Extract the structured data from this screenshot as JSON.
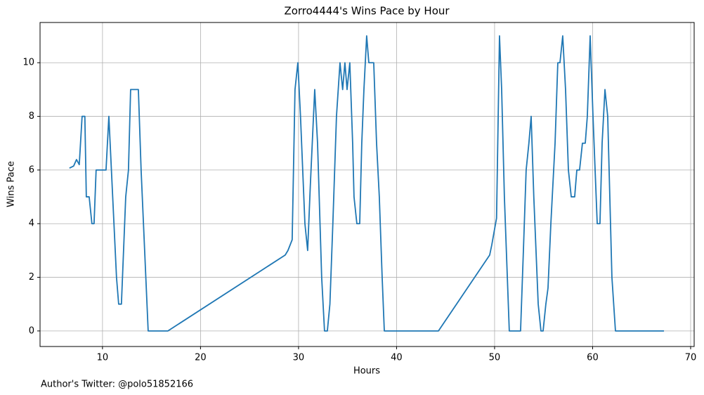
{
  "chart_data": {
    "type": "line",
    "title": "Zorro4444's Wins Pace by Hour",
    "x_label": "Hours",
    "y_label": "Wins Pace",
    "annotation": "Author's Twitter: @polo51852166",
    "x": [
      6.63,
      7.06,
      7.35,
      7.63,
      7.92,
      8.2,
      8.35,
      8.64,
      8.92,
      9.14,
      9.35,
      10.36,
      10.65,
      11.43,
      11.65,
      11.93,
      12.15,
      12.37,
      12.65,
      12.87,
      13.66,
      13.94,
      14.66,
      16.67,
      28.64,
      28.92,
      29.35,
      29.64,
      29.93,
      30.2,
      30.65,
      30.93,
      31.2,
      31.65,
      31.94,
      32.36,
      32.65,
      32.94,
      33.2,
      33.5,
      33.87,
      34.23,
      34.5,
      34.73,
      34.95,
      35.23,
      35.52,
      35.66,
      35.95,
      36.24,
      36.45,
      36.67,
      36.95,
      37.17,
      37.67,
      37.96,
      38.24,
      38.53,
      38.75,
      44.27,
      49.5,
      49.71,
      50.0,
      50.2,
      50.5,
      50.72,
      51.0,
      51.3,
      51.5,
      52.65,
      52.94,
      53.22,
      53.5,
      53.73,
      54.0,
      54.45,
      54.73,
      54.95,
      55.23,
      55.45,
      55.74,
      56.17,
      56.45,
      56.67,
      56.95,
      57.24,
      57.53,
      57.82,
      58.17,
      58.39,
      58.67,
      58.96,
      59.25,
      59.46,
      59.75,
      60.04,
      60.47,
      60.75,
      60.97,
      61.26,
      61.54,
      61.97,
      62.33,
      67.28
    ],
    "series": [
      {
        "name": "Wins Pace",
        "color": "#1f77b4",
        "values": [
          6.07,
          6.15,
          6.39,
          6.2,
          8,
          8,
          5,
          5,
          4,
          4,
          6,
          6,
          8,
          2,
          1,
          1,
          3,
          5,
          6,
          9,
          9,
          6,
          0,
          0,
          2.83,
          3,
          3.4,
          9,
          10,
          8,
          4,
          3,
          5.4,
          9,
          7,
          2,
          0,
          0,
          1,
          4,
          8,
          10,
          9,
          10,
          9,
          10,
          7,
          5,
          4,
          4,
          7,
          9,
          11,
          10,
          10,
          7,
          5,
          2,
          0,
          0,
          2.83,
          3.2,
          3.8,
          4.2,
          11,
          9,
          5,
          2,
          0,
          0,
          3,
          6,
          7,
          8,
          5,
          1,
          0,
          0,
          1,
          1.6,
          4,
          7,
          10,
          10,
          11,
          9,
          6,
          5,
          5,
          6,
          6,
          7,
          7,
          8,
          11,
          8,
          4,
          4,
          7,
          9,
          8,
          2,
          0,
          0
        ]
      }
    ],
    "xlim": [
      3.63,
      70.36
    ],
    "ylim": [
      -0.58,
      11.5
    ],
    "xticks": [
      10,
      20,
      30,
      40,
      50,
      60,
      70
    ],
    "yticks": [
      0,
      2,
      4,
      6,
      8,
      10
    ],
    "grid": true
  }
}
